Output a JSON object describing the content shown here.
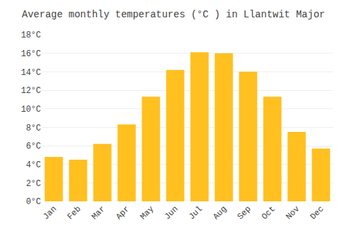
{
  "chart_data": {
    "type": "bar",
    "title": "Average monthly temperatures (°C ) in Llantwit Major",
    "categories": [
      "Jan",
      "Feb",
      "Mar",
      "Apr",
      "May",
      "Jun",
      "Jul",
      "Aug",
      "Sep",
      "Oct",
      "Nov",
      "Dec"
    ],
    "values": [
      4.8,
      4.5,
      6.2,
      8.3,
      11.3,
      14.2,
      16.1,
      16.0,
      14.0,
      11.3,
      7.5,
      5.7
    ],
    "color": "#FFC020",
    "ylim": [
      0,
      18
    ],
    "yticks": [
      {
        "value": 0,
        "label": "0°C"
      },
      {
        "value": 2,
        "label": "2°C"
      },
      {
        "value": 4,
        "label": "4°C"
      },
      {
        "value": 6,
        "label": "6°C"
      },
      {
        "value": 8,
        "label": "8°C"
      },
      {
        "value": 10,
        "label": "10°C"
      },
      {
        "value": 12,
        "label": "12°C"
      },
      {
        "value": 14,
        "label": "14°C"
      },
      {
        "value": 16,
        "label": "16°C"
      },
      {
        "value": 18,
        "label": "18°C"
      }
    ],
    "grid": true
  }
}
